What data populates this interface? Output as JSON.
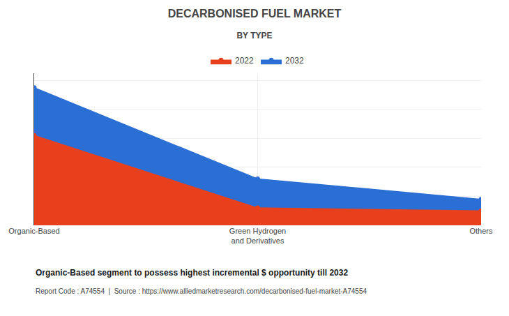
{
  "chart_data": {
    "type": "area",
    "title": "DECARBONISED FUEL MARKET",
    "subtitle": "BY TYPE",
    "categories": [
      "Organic-Based",
      "Green Hydrogen\nand Derivatives",
      "Others"
    ],
    "series": [
      {
        "name": "2022",
        "color": "#e8401c",
        "values": [
          0.62,
          0.12,
          0.1
        ]
      },
      {
        "name": "2032",
        "color": "#2b6fd4",
        "values": [
          0.95,
          0.32,
          0.18
        ]
      }
    ],
    "ylim": [
      0,
      1.05
    ],
    "yticks": [
      0,
      0.2,
      0.4,
      0.6,
      0.8,
      1.0
    ],
    "grid": true,
    "legend": "top",
    "tick_labels": "x",
    "marker": "circle",
    "annotations": [
      "Organic-Based segment to possess highest incremental $ opportunity till 2032",
      "Report Code : A74554  |  Source : https://www.alliedmarketresearch.com/decarbonised-fuel-market-A74554"
    ]
  }
}
